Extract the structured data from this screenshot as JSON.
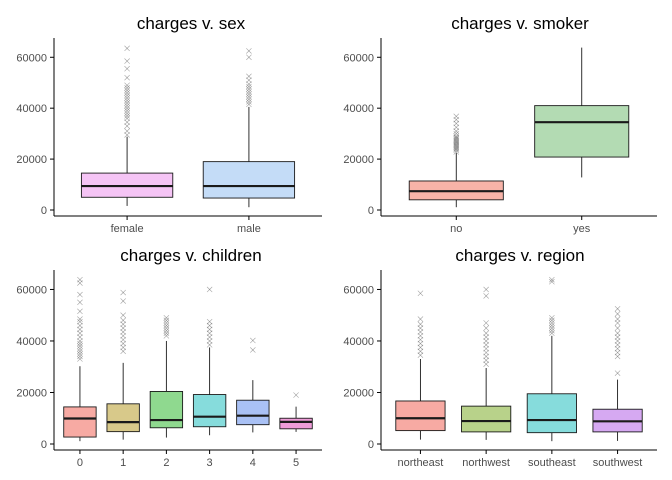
{
  "chart_data": [
    {
      "type": "box",
      "title": "charges v. sex",
      "ylim": [
        0,
        66000
      ],
      "yticks": [
        0,
        20000,
        40000,
        60000
      ],
      "ytick_labels": [
        "0",
        "20000",
        "40000",
        "60000"
      ],
      "categories": [
        "female",
        "male"
      ],
      "colors": [
        "#f5c4f5",
        "#c4dcf7"
      ],
      "boxes": [
        {
          "min": 1600,
          "q1": 5000,
          "median": 9400,
          "q3": 14500,
          "max": 28800,
          "outliers": [
            29500,
            31000,
            33000,
            34500,
            36000,
            37000,
            38000,
            39000,
            40000,
            41000,
            42000,
            43000,
            44000,
            45000,
            46000,
            47000,
            48000,
            49000,
            52000,
            55500,
            58500,
            63500
          ]
        },
        {
          "min": 1100,
          "q1": 4700,
          "median": 9400,
          "q3": 19000,
          "max": 40500,
          "outliers": [
            41500,
            42500,
            43500,
            44500,
            45500,
            46500,
            47500,
            48500,
            49500,
            51000,
            52500,
            60000,
            62500
          ]
        }
      ]
    },
    {
      "type": "box",
      "title": "charges v. smoker",
      "ylim": [
        0,
        66000
      ],
      "yticks": [
        0,
        20000,
        40000,
        60000
      ],
      "ytick_labels": [
        "0",
        "20000",
        "40000",
        "60000"
      ],
      "categories": [
        "no",
        "yes"
      ],
      "colors": [
        "#f7b3a8",
        "#b3dbb3"
      ],
      "boxes": [
        {
          "min": 1100,
          "q1": 4000,
          "median": 7400,
          "q3": 11400,
          "max": 22400,
          "outliers": [
            22800,
            23500,
            24000,
            24500,
            25000,
            25500,
            26000,
            26500,
            27000,
            27500,
            28000,
            28500,
            29000,
            30000,
            31000,
            32500,
            34000,
            35500,
            36800
          ]
        },
        {
          "min": 12800,
          "q1": 20800,
          "median": 34500,
          "q3": 41000,
          "max": 63800,
          "outliers": []
        }
      ]
    },
    {
      "type": "box",
      "title": "charges v. children",
      "ylim": [
        0,
        66000
      ],
      "yticks": [
        0,
        20000,
        40000,
        60000
      ],
      "ytick_labels": [
        "0",
        "20000",
        "40000",
        "60000"
      ],
      "categories": [
        "0",
        "1",
        "2",
        "3",
        "4",
        "5"
      ],
      "colors": [
        "#f7aaa3",
        "#d8c98a",
        "#8fd98f",
        "#86dcdc",
        "#a9c1f5",
        "#ee9cd8"
      ],
      "boxes": [
        {
          "min": 1100,
          "q1": 2700,
          "median": 9900,
          "q3": 14400,
          "max": 30200,
          "outliers": [
            33000,
            34000,
            35000,
            36000,
            37000,
            38000,
            39000,
            40000,
            41500,
            43000,
            44500,
            46000,
            47500,
            48500,
            51500,
            55000,
            58000,
            62500,
            63800
          ]
        },
        {
          "min": 1700,
          "q1": 4800,
          "median": 8500,
          "q3": 15600,
          "max": 31500,
          "outliers": [
            36000,
            37500,
            39000,
            40500,
            42000,
            43500,
            45000,
            46500,
            48000,
            50000,
            55500,
            58800
          ]
        },
        {
          "min": 2500,
          "q1": 6300,
          "median": 9300,
          "q3": 20400,
          "max": 40000,
          "outliers": [
            42000,
            43000,
            44000,
            45000,
            46000,
            47000,
            48000,
            49000
          ]
        },
        {
          "min": 3400,
          "q1": 6700,
          "median": 10600,
          "q3": 19200,
          "max": 37500,
          "outliers": [
            38500,
            40000,
            41500,
            43000,
            44500,
            46000,
            47500,
            60000
          ]
        },
        {
          "min": 4500,
          "q1": 7500,
          "median": 11000,
          "q3": 17000,
          "max": 24800,
          "outliers": [
            36500,
            40200
          ]
        },
        {
          "min": 4700,
          "q1": 5900,
          "median": 8600,
          "q3": 10000,
          "max": 14500,
          "outliers": [
            19000
          ]
        }
      ]
    },
    {
      "type": "box",
      "title": "charges v. region",
      "ylim": [
        0,
        66000
      ],
      "yticks": [
        0,
        20000,
        40000,
        60000
      ],
      "ytick_labels": [
        "0",
        "20000",
        "40000",
        "60000"
      ],
      "categories": [
        "northeast",
        "northwest",
        "southeast",
        "southwest"
      ],
      "colors": [
        "#f7aaa3",
        "#b8d28a",
        "#86dcdc",
        "#d6a9f2"
      ],
      "boxes": [
        {
          "min": 1700,
          "q1": 5200,
          "median": 10000,
          "q3": 16700,
          "max": 33000,
          "outliers": [
            34500,
            36000,
            37500,
            39000,
            40500,
            42000,
            43500,
            45000,
            46500,
            48500,
            58500
          ]
        },
        {
          "min": 1600,
          "q1": 4700,
          "median": 8900,
          "q3": 14700,
          "max": 29500,
          "outliers": [
            31000,
            32500,
            34000,
            35500,
            37000,
            38500,
            40000,
            41500,
            43000,
            45000,
            47000,
            57500,
            60000
          ]
        },
        {
          "min": 1100,
          "q1": 4400,
          "median": 9300,
          "q3": 19500,
          "max": 42000,
          "outliers": [
            43000,
            44000,
            45000,
            46000,
            47000,
            48000,
            49000,
            63000,
            63800
          ]
        },
        {
          "min": 1200,
          "q1": 4700,
          "median": 8800,
          "q3": 13500,
          "max": 25000,
          "outliers": [
            27500,
            34000,
            35500,
            37000,
            38500,
            40000,
            41500,
            43000,
            45000,
            47000,
            48500,
            50500,
            52500
          ]
        }
      ]
    }
  ]
}
